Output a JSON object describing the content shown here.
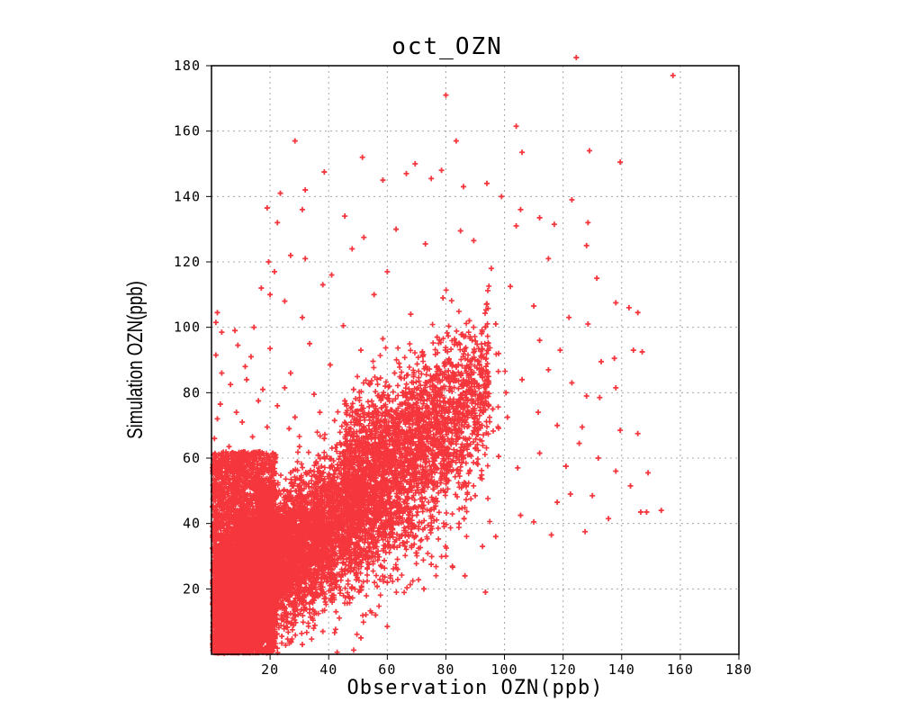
{
  "chart_data": {
    "type": "scatter",
    "title": "oct_OZN",
    "xlabel": "Observation OZN(ppb)",
    "ylabel": "Simulation OZN(ppb)",
    "xlim": [
      0,
      180
    ],
    "ylim": [
      0,
      180
    ],
    "xticks": [
      20,
      40,
      60,
      80,
      100,
      120,
      140,
      160,
      180
    ],
    "yticks": [
      20,
      40,
      60,
      80,
      100,
      120,
      140,
      160,
      180
    ],
    "grid": true,
    "marker": "plus",
    "point_color": "#f5363c",
    "series": [
      {
        "points": [
          [
            157.5,
            177.0
          ],
          [
            80.0,
            171.0
          ],
          [
            124.5,
            182.5
          ],
          [
            104.0,
            161.5
          ],
          [
            83.5,
            157.0
          ],
          [
            28.5,
            157.0
          ],
          [
            129.0,
            154.0
          ],
          [
            51.5,
            152.0
          ],
          [
            106.0,
            153.5
          ],
          [
            139.5,
            150.5
          ],
          [
            69.5,
            150.0
          ],
          [
            66.5,
            147.0
          ],
          [
            38.5,
            147.5
          ],
          [
            78.5,
            148.0
          ],
          [
            58.5,
            145.0
          ],
          [
            75.0,
            145.5
          ],
          [
            86.0,
            143.0
          ],
          [
            94.0,
            144.0
          ],
          [
            32.0,
            142.0
          ],
          [
            23.5,
            141.0
          ],
          [
            105.5,
            136.0
          ],
          [
            123.0,
            139.0
          ],
          [
            128.5,
            132.0
          ],
          [
            99.0,
            140.0
          ],
          [
            19.0,
            136.5
          ],
          [
            31.0,
            136.0
          ],
          [
            22.5,
            132.0
          ],
          [
            45.5,
            134.0
          ],
          [
            63.0,
            130.0
          ],
          [
            85.0,
            129.5
          ],
          [
            104.0,
            131.0
          ],
          [
            112.0,
            133.5
          ],
          [
            117.0,
            131.5
          ],
          [
            19.5,
            120.0
          ],
          [
            21.5,
            117.0
          ],
          [
            27.0,
            122.0
          ],
          [
            32.0,
            121.0
          ],
          [
            48.0,
            124.0
          ],
          [
            52.0,
            127.5
          ],
          [
            73.0,
            125.5
          ],
          [
            89.5,
            126.5
          ],
          [
            115.0,
            121.0
          ],
          [
            41.0,
            116.0
          ],
          [
            60.0,
            117.0
          ],
          [
            95.5,
            118.0
          ],
          [
            128.0,
            125.0
          ],
          [
            131.5,
            115.0
          ],
          [
            17.0,
            112.0
          ],
          [
            20.0,
            110.0
          ],
          [
            25.0,
            108.0
          ],
          [
            38.0,
            113.0
          ],
          [
            55.5,
            110.0
          ],
          [
            79.0,
            109.0
          ],
          [
            102.0,
            112.5
          ],
          [
            110.0,
            106.5
          ],
          [
            122.0,
            103.0
          ],
          [
            2.0,
            104.5
          ],
          [
            1.5,
            101.5
          ],
          [
            3.5,
            98.5
          ],
          [
            8.0,
            99.0
          ],
          [
            14.5,
            100.0
          ],
          [
            31.0,
            103.0
          ],
          [
            45.0,
            100.5
          ],
          [
            68.0,
            104.0
          ],
          [
            88.0,
            102.0
          ],
          [
            97.0,
            101.0
          ],
          [
            138.0,
            107.5
          ],
          [
            142.5,
            106.0
          ],
          [
            145.5,
            104.5
          ],
          [
            128.5,
            101.0
          ],
          [
            9.0,
            94.5
          ],
          [
            1.5,
            91.5
          ],
          [
            3.5,
            86.0
          ],
          [
            11.5,
            88.0
          ],
          [
            13.5,
            91.0
          ],
          [
            20.0,
            93.5
          ],
          [
            33.5,
            95.0
          ],
          [
            51.0,
            93.0
          ],
          [
            58.5,
            96.5
          ],
          [
            77.0,
            97.0
          ],
          [
            98.0,
            92.0
          ],
          [
            112.0,
            96.0
          ],
          [
            119.0,
            93.0
          ],
          [
            144.0,
            93.0
          ],
          [
            147.0,
            92.5
          ],
          [
            133.0,
            89.5
          ],
          [
            137.5,
            90.5
          ],
          [
            123.0,
            83.0
          ],
          [
            6.5,
            82.5
          ],
          [
            12.0,
            84.0
          ],
          [
            17.5,
            81.0
          ],
          [
            27.0,
            86.0
          ],
          [
            40.5,
            88.5
          ],
          [
            64.0,
            89.0
          ],
          [
            85.0,
            85.5
          ],
          [
            106.0,
            84.0
          ],
          [
            115.0,
            87.0
          ],
          [
            128.0,
            79.0
          ],
          [
            132.5,
            78.5
          ],
          [
            138.0,
            81.5
          ],
          [
            3.0,
            76.5
          ],
          [
            2.0,
            72.0
          ],
          [
            8.5,
            74.0
          ],
          [
            10.5,
            71.0
          ],
          [
            22.5,
            76.0
          ],
          [
            35.0,
            79.5
          ],
          [
            48.5,
            81.0
          ],
          [
            69.0,
            80.0
          ],
          [
            92.0,
            77.0
          ],
          [
            101.0,
            72.5
          ],
          [
            111.5,
            74.0
          ],
          [
            118.0,
            70.0
          ],
          [
            126.5,
            69.5
          ],
          [
            139.5,
            68.5
          ],
          [
            145.5,
            67.5
          ],
          [
            125.5,
            64.5
          ],
          [
            132.0,
            60.0
          ],
          [
            138.0,
            56.0
          ],
          [
            1.0,
            66.0
          ],
          [
            6.0,
            63.5
          ],
          [
            14.0,
            66.5
          ],
          [
            26.5,
            69.0
          ],
          [
            42.0,
            71.5
          ],
          [
            57.0,
            74.0
          ],
          [
            75.0,
            71.0
          ],
          [
            88.0,
            66.0
          ],
          [
            98.0,
            60.5
          ],
          [
            112.0,
            61.5
          ],
          [
            121.0,
            57.5
          ],
          [
            104.5,
            57.0
          ],
          [
            143.0,
            51.5
          ],
          [
            149.0,
            55.5
          ],
          [
            130.0,
            48.5
          ],
          [
            122.5,
            49.0
          ],
          [
            118.0,
            46.5
          ],
          [
            146.5,
            43.5
          ],
          [
            148.5,
            43.5
          ],
          [
            153.5,
            44.0
          ],
          [
            135.5,
            41.5
          ],
          [
            127.5,
            37.5
          ],
          [
            116.0,
            36.5
          ],
          [
            105.5,
            42.5
          ],
          [
            110.0,
            40.5
          ],
          [
            90.0,
            48.5
          ],
          [
            84.5,
            40.0
          ],
          [
            92.5,
            33.0
          ],
          [
            97.0,
            36.0
          ],
          [
            80.0,
            30.0
          ],
          [
            86.5,
            24.0
          ],
          [
            93.5,
            19.0
          ],
          [
            75.0,
            27.5
          ],
          [
            70.0,
            31.0
          ],
          [
            63.5,
            26.0
          ],
          [
            60.0,
            22.0
          ],
          [
            72.5,
            20.0
          ],
          [
            55.0,
            34.0
          ],
          [
            47.0,
            17.5
          ],
          [
            42.5,
            13.0
          ],
          [
            56.0,
            12.0
          ],
          [
            60.0,
            8.5
          ],
          [
            51.0,
            5.0
          ],
          [
            38.0,
            7.0
          ],
          [
            31.0,
            3.0
          ],
          [
            24.0,
            5.5
          ],
          [
            18.0,
            1.5
          ],
          [
            10.5,
            2.0
          ],
          [
            4.5,
            5.0
          ],
          [
            2.0,
            12.5
          ],
          [
            1.5,
            20.0
          ],
          [
            6.5,
            17.0
          ],
          [
            12.0,
            14.0
          ],
          [
            20.5,
            11.0
          ],
          [
            28.0,
            15.0
          ],
          [
            35.5,
            20.5
          ],
          [
            1.0,
            30.0
          ],
          [
            5.0,
            28.0
          ],
          [
            9.5,
            34.0
          ],
          [
            15.0,
            25.0
          ],
          [
            22.0,
            30.0
          ],
          [
            30.0,
            26.0
          ],
          [
            38.5,
            32.5
          ],
          [
            45.0,
            28.0
          ],
          [
            2.5,
            40.0
          ],
          [
            8.0,
            44.0
          ],
          [
            16.0,
            38.0
          ],
          [
            24.0,
            42.0
          ],
          [
            32.5,
            44.5
          ],
          [
            40.0,
            39.0
          ],
          [
            48.0,
            45.0
          ],
          [
            56.0,
            48.0
          ],
          [
            64.0,
            52.0
          ],
          [
            68.5,
            58.0
          ],
          [
            3.0,
            50.0
          ],
          [
            10.0,
            54.5
          ],
          [
            18.5,
            50.5
          ],
          [
            27.0,
            55.5
          ],
          [
            35.0,
            52.0
          ],
          [
            43.0,
            57.0
          ],
          [
            51.5,
            61.5
          ],
          [
            59.0,
            64.0
          ],
          [
            66.0,
            67.5
          ],
          [
            73.0,
            62.0
          ],
          [
            80.0,
            57.5
          ],
          [
            2.0,
            58.0
          ],
          [
            12.5,
            60.0
          ],
          [
            21.0,
            61.5
          ],
          [
            30.0,
            63.5
          ],
          [
            38.5,
            66.0
          ],
          [
            47.0,
            68.0
          ],
          [
            55.5,
            70.0
          ],
          [
            62.0,
            72.5
          ],
          [
            70.0,
            75.5
          ],
          [
            78.0,
            79.0
          ],
          [
            84.0,
            72.0
          ],
          [
            91.0,
            69.0
          ],
          [
            96.0,
            75.0
          ],
          [
            100.5,
            80.0
          ],
          [
            94.0,
            84.0
          ],
          [
            81.0,
            90.0
          ],
          [
            72.0,
            92.5
          ],
          [
            62.5,
            86.0
          ],
          [
            54.0,
            82.5
          ],
          [
            45.5,
            77.5
          ],
          [
            37.0,
            74.0
          ],
          [
            28.5,
            72.5
          ],
          [
            19.0,
            69.5
          ],
          [
            16.0,
            77.5
          ],
          [
            25.0,
            81.5
          ]
        ]
      }
    ]
  }
}
